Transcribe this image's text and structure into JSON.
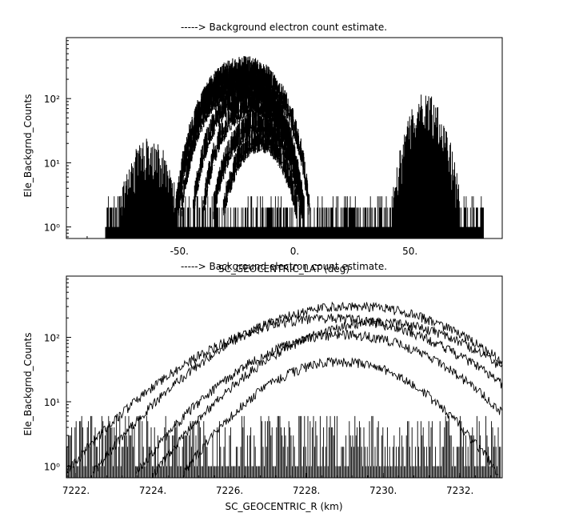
{
  "chart_data": [
    {
      "type": "line",
      "title": "-----> Background electron count estimate.",
      "xlabel": "SC_GEOCENTRIC_LAT (deg)",
      "ylabel": "Ele_Backgrnd_Counts",
      "xlim": [
        -99,
        90
      ],
      "ylim_log10": [
        -0.18,
        2.95
      ],
      "y_scale": "log",
      "x_ticks": [
        -50,
        0,
        50
      ],
      "x_tick_labels": [
        "-50.",
        "0.",
        "50."
      ],
      "y_ticks": [
        1,
        10,
        100
      ],
      "y_tick_labels": [
        "10⁰",
        "10¹",
        "10²"
      ],
      "data_x_range": [
        -82,
        82
      ],
      "background_counts": [
        1,
        2,
        3
      ],
      "envelopes": [
        {
          "center": -22,
          "width": 31,
          "peak": 320
        },
        {
          "center": -24,
          "width": 30,
          "peak": 260
        },
        {
          "center": -23,
          "width": 29,
          "peak": 200
        },
        {
          "center": -20,
          "width": 27,
          "peak": 140
        },
        {
          "center": -18,
          "width": 25,
          "peak": 90
        },
        {
          "center": -16,
          "width": 23,
          "peak": 45
        },
        {
          "center": -15,
          "width": 20,
          "peak": 25
        }
      ],
      "secondary_peaks": [
        {
          "center": 57,
          "width": 9,
          "peak": 90
        },
        {
          "center": -63,
          "width": 10,
          "peak": 18
        }
      ]
    },
    {
      "type": "line",
      "title": "-----> Background electron count estimate.",
      "xlabel": "SC_GEOCENTRIC_R (km)",
      "ylabel": "Ele_Backgrnd_Counts",
      "xlim": [
        7221.75,
        7233.1
      ],
      "ylim_log10": [
        -0.18,
        2.95
      ],
      "y_scale": "log",
      "x_ticks": [
        7222,
        7224,
        7226,
        7228,
        7230,
        7232
      ],
      "x_tick_labels": [
        "7222.",
        "7224.",
        "7226.",
        "7228.",
        "7230.",
        "7232."
      ],
      "y_ticks": [
        1,
        10,
        100
      ],
      "y_tick_labels": [
        "10⁰",
        "10¹",
        "10²"
      ],
      "background_counts": [
        1,
        2,
        3,
        4,
        5,
        6
      ],
      "curves": [
        {
          "center": 7229.2,
          "width": 3.5,
          "peak": 310
        },
        {
          "center": 7228.6,
          "width": 3.7,
          "peak": 200
        },
        {
          "center": 7229.9,
          "width": 3.2,
          "peak": 170
        },
        {
          "center": 7229.0,
          "width": 3.1,
          "peak": 110
        },
        {
          "center": 7228.9,
          "width": 2.6,
          "peak": 42
        }
      ]
    }
  ]
}
